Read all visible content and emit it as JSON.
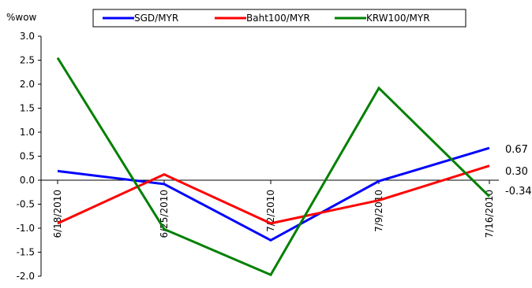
{
  "chart_data": {
    "type": "line",
    "ylabel": "%wow",
    "x": [
      "6/18/2010",
      "6/25/2010",
      "7/2/2010",
      "7/9/2010",
      "7/16/2010"
    ],
    "ylim": [
      -2.0,
      3.0
    ],
    "yticks": [
      "3.0",
      "2.5",
      "2.0",
      "1.5",
      "1.0",
      "0.5",
      "0.0",
      "-0.5",
      "-1.0",
      "-1.5",
      "-2.0"
    ],
    "legend_position": "top",
    "grid": false,
    "series": [
      {
        "name": "SGD/MYR",
        "color": "#0000FF",
        "values": [
          0.19,
          -0.08,
          -1.25,
          -0.02,
          0.67
        ],
        "end_label": "0.67"
      },
      {
        "name": "Baht100/MYR",
        "color": "#FF0000",
        "values": [
          -0.9,
          0.12,
          -0.9,
          -0.42,
          0.3
        ],
        "end_label": "0.30"
      },
      {
        "name": "KRW100/MYR",
        "color": "#008000",
        "values": [
          2.55,
          -1.02,
          -1.97,
          1.92,
          -0.34
        ],
        "end_label": "-0.34"
      }
    ]
  }
}
